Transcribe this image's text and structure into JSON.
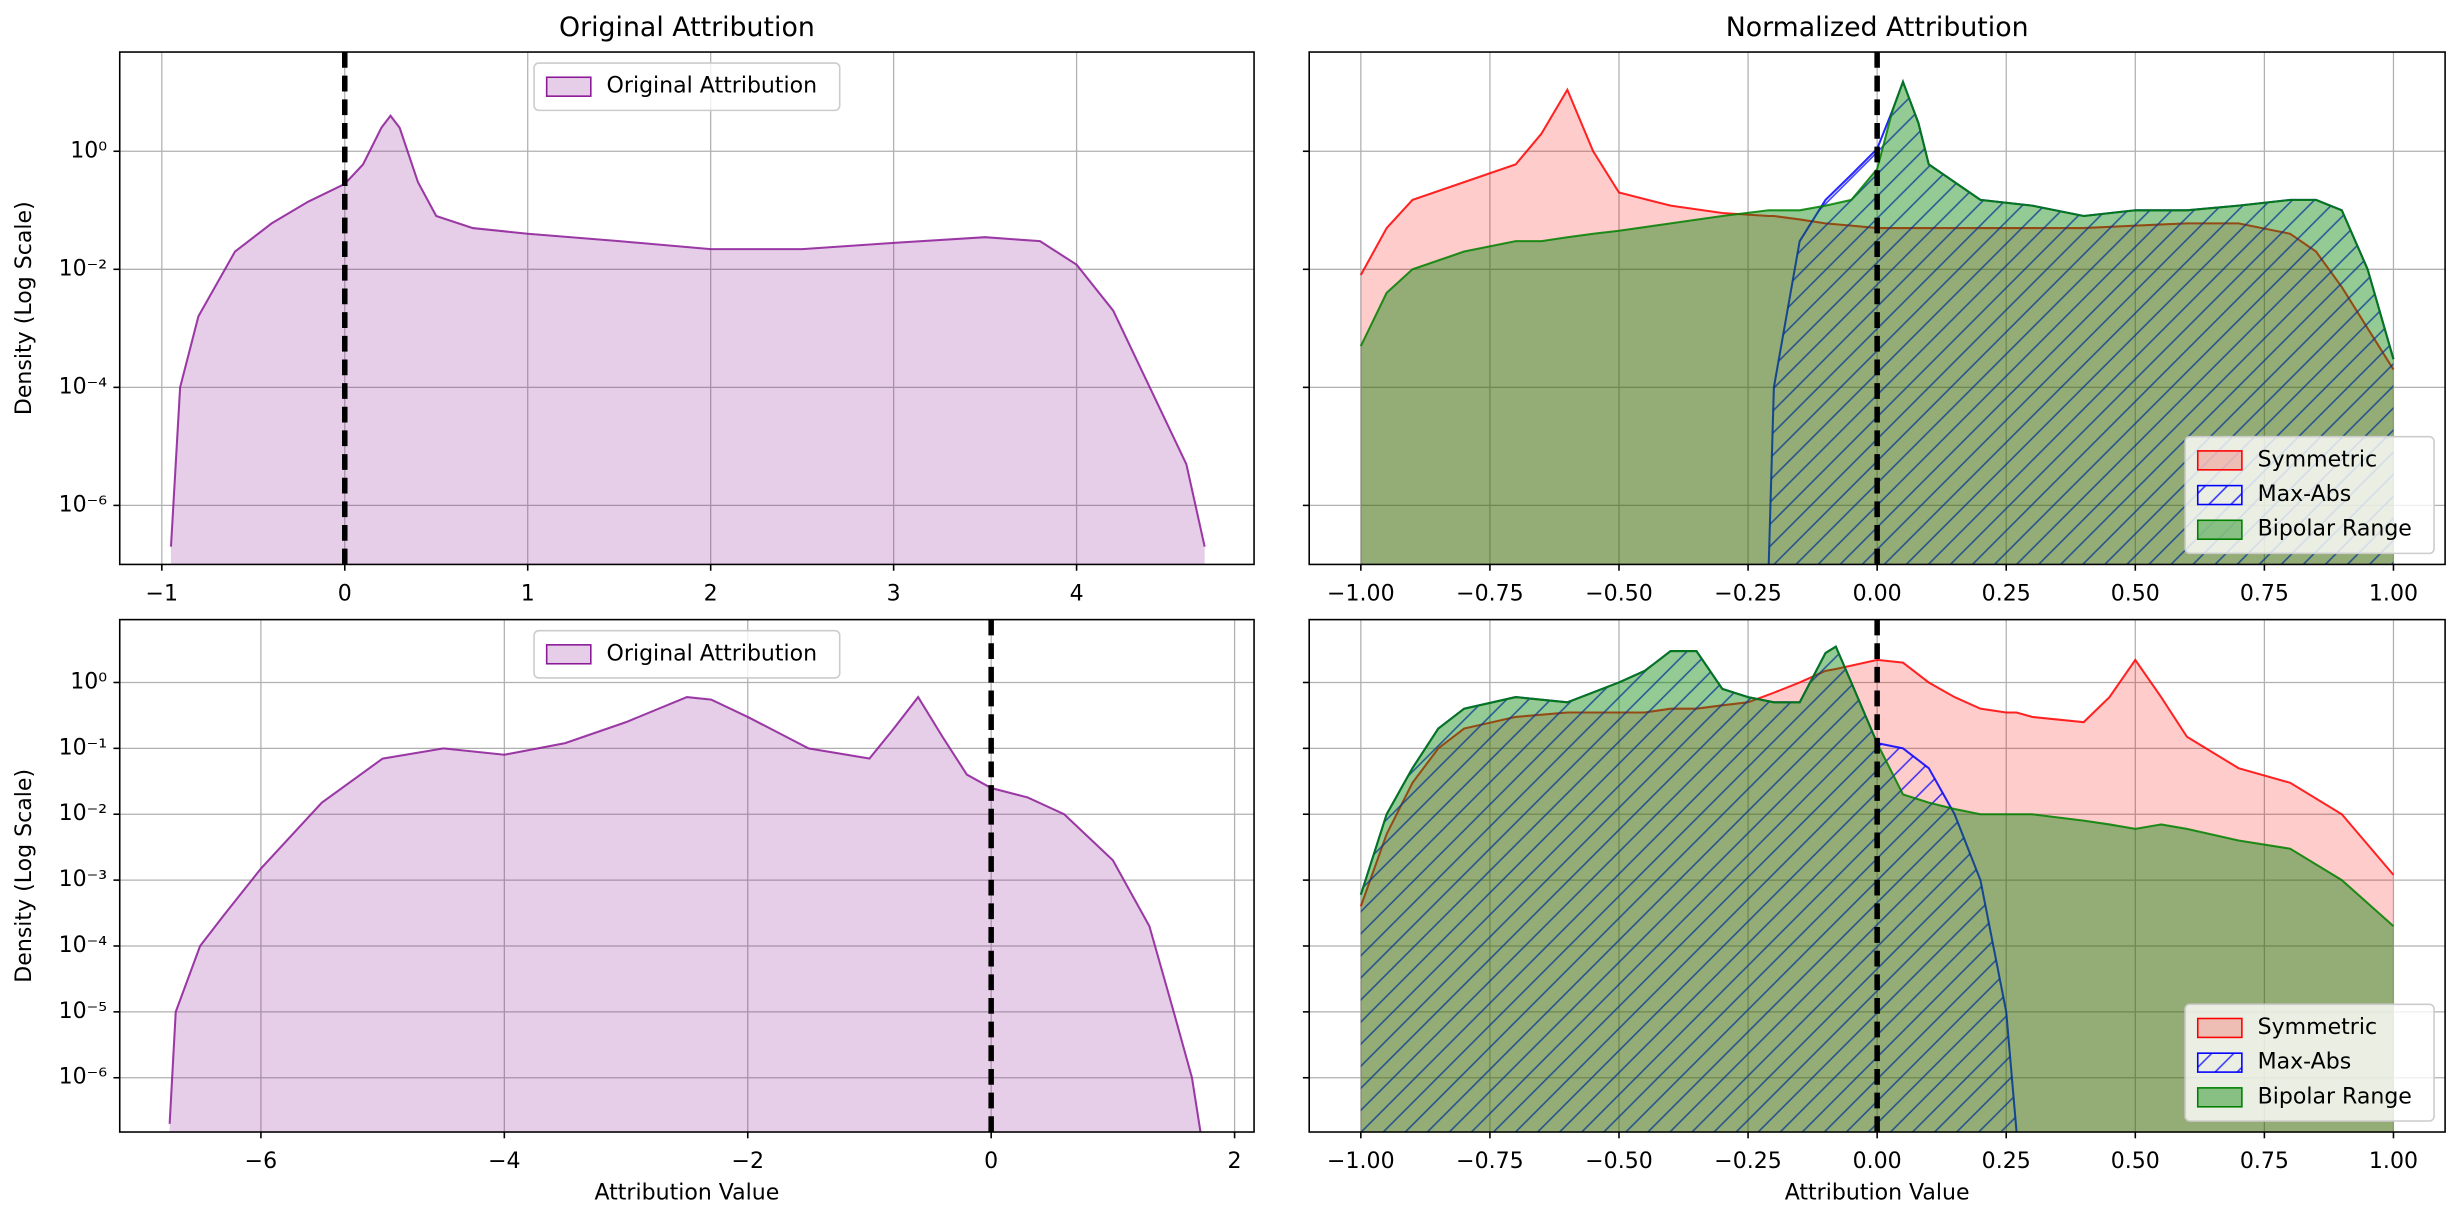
{
  "chart_data": [
    {
      "type": "area",
      "title": "Original Attribution",
      "ylabel": "Density (Log Scale)",
      "log_y": true,
      "grid": true,
      "legend": "upper center",
      "vline": 0,
      "xlim": [
        -1.23,
        4.97
      ],
      "xticks": [
        {
          "value": -1,
          "label": "−1"
        },
        0,
        1,
        2,
        3,
        4
      ],
      "ylim": [
        1e-07,
        48
      ],
      "yticks": [
        {
          "value": 1e-06,
          "label": "10⁻⁶"
        },
        {
          "value": 0.0001,
          "label": "10⁻⁴"
        },
        {
          "value": 0.01,
          "label": "10⁻²"
        },
        {
          "value": 1,
          "label": "10⁰"
        }
      ],
      "x": [
        -0.95,
        -0.9,
        -0.8,
        -0.6,
        -0.4,
        -0.2,
        0,
        0.1,
        0.2,
        0.25,
        0.3,
        0.4,
        0.5,
        0.7,
        1,
        1.5,
        2,
        2.5,
        3,
        3.5,
        3.8,
        4,
        4.2,
        4.4,
        4.6,
        4.7
      ],
      "series": [
        {
          "name": "Original Attribution",
          "color": "#8b1a96",
          "fill_alpha": 0.22,
          "values": [
            2e-07,
            0.0001,
            0.0016,
            0.02,
            0.06,
            0.14,
            0.28,
            0.6,
            2.5,
            4,
            2.5,
            0.3,
            0.08,
            0.05,
            0.04,
            0.03,
            0.022,
            0.022,
            0.028,
            0.035,
            0.03,
            0.012,
            0.002,
            0.0001,
            5e-06,
            2e-07
          ]
        }
      ]
    },
    {
      "type": "area",
      "title": "Normalized Attribution",
      "log_y": true,
      "sharey": true,
      "grid": true,
      "legend": "lower right",
      "vline": 0,
      "xlim": [
        -1.1,
        1.1
      ],
      "xticks": [
        {
          "value": -1,
          "label": "−1.00"
        },
        {
          "value": -0.75,
          "label": "−0.75"
        },
        {
          "value": -0.5,
          "label": "−0.50"
        },
        {
          "value": -0.25,
          "label": "−0.25"
        },
        {
          "value": 0,
          "label": "0.00"
        },
        {
          "value": 0.25,
          "label": "0.25"
        },
        {
          "value": 0.5,
          "label": "0.50"
        },
        {
          "value": 0.75,
          "label": "0.75"
        },
        {
          "value": 1,
          "label": "1.00"
        }
      ],
      "ylim": [
        1e-07,
        48
      ],
      "yticks": [
        1e-06,
        0.0001,
        0.01,
        1
      ],
      "x": [
        -1,
        -0.95,
        -0.9,
        -0.8,
        -0.7,
        -0.65,
        -0.6,
        -0.55,
        -0.5,
        -0.4,
        -0.3,
        -0.21,
        -0.2,
        -0.15,
        -0.1,
        -0.05,
        0,
        0.03,
        0.05,
        0.08,
        0.1,
        0.2,
        0.3,
        0.4,
        0.5,
        0.6,
        0.7,
        0.8,
        0.85,
        0.9,
        0.95,
        1
      ],
      "series": [
        {
          "name": "Symmetric",
          "color": "#ff0000",
          "fill_alpha": 0.2,
          "values": [
            0.008,
            0.05,
            0.15,
            0.3,
            0.6,
            2,
            11,
            1,
            0.2,
            0.12,
            0.09,
            0.08,
            0.08,
            0.07,
            0.06,
            0.055,
            0.05,
            0.05,
            0.05,
            0.05,
            0.05,
            0.05,
            0.05,
            0.05,
            0.055,
            0.06,
            0.06,
            0.04,
            0.02,
            0.005,
            0.001,
            0.0002
          ]
        },
        {
          "name": "Max-Abs",
          "color": "#0000ff",
          "hatch": "//",
          "values": [
            null,
            null,
            null,
            null,
            null,
            null,
            null,
            null,
            null,
            null,
            null,
            1e-07,
            0.0001,
            0.03,
            0.15,
            0.4,
            1.1,
            5,
            15,
            3,
            0.6,
            0.15,
            0.12,
            0.08,
            0.1,
            0.1,
            0.12,
            0.15,
            0.15,
            0.1,
            0.01,
            0.0003
          ]
        },
        {
          "name": "Bipolar Range",
          "color": "#008000",
          "fill_alpha": 0.42,
          "values": [
            0.0005,
            0.004,
            0.01,
            0.02,
            0.03,
            0.03,
            0.035,
            0.04,
            0.045,
            0.06,
            0.08,
            0.1,
            0.1,
            0.1,
            0.12,
            0.15,
            0.5,
            5,
            15,
            3,
            0.6,
            0.15,
            0.12,
            0.08,
            0.1,
            0.1,
            0.12,
            0.15,
            0.15,
            0.1,
            0.01,
            0.0003
          ]
        }
      ]
    },
    {
      "type": "area",
      "xlabel": "Attribution Value",
      "ylabel": "Density (Log Scale)",
      "log_y": true,
      "grid": true,
      "legend": "upper center",
      "vline": 0,
      "xlim": [
        -7.16,
        2.16
      ],
      "xticks": [
        {
          "value": -6,
          "label": "−6"
        },
        {
          "value": -4,
          "label": "−4"
        },
        {
          "value": -2,
          "label": "−2"
        },
        0,
        2
      ],
      "ylim": [
        1.5e-07,
        9
      ],
      "yticks": [
        {
          "value": 1e-06,
          "label": "10⁻⁶"
        },
        {
          "value": 1e-05,
          "label": "10⁻⁵"
        },
        {
          "value": 0.0001,
          "label": "10⁻⁴"
        },
        {
          "value": 0.001,
          "label": "10⁻³"
        },
        {
          "value": 0.01,
          "label": "10⁻²"
        },
        {
          "value": 0.1,
          "label": "10⁻¹"
        },
        {
          "value": 1,
          "label": "10⁰"
        }
      ],
      "x": [
        -6.75,
        -6.7,
        -6.5,
        -6.3,
        -6,
        -5.5,
        -5,
        -4.5,
        -4,
        -3.5,
        -3,
        -2.5,
        -2.3,
        -2,
        -1.5,
        -1,
        -0.8,
        -0.6,
        -0.4,
        -0.2,
        0,
        0.3,
        0.6,
        1,
        1.3,
        1.5,
        1.65,
        1.72
      ],
      "series": [
        {
          "name": "Original Attribution",
          "color": "#8b1a96",
          "fill_alpha": 0.22,
          "values": [
            2e-07,
            1e-05,
            0.0001,
            0.0003,
            0.0015,
            0.015,
            0.07,
            0.1,
            0.08,
            0.12,
            0.25,
            0.6,
            0.55,
            0.3,
            0.1,
            0.07,
            0.2,
            0.6,
            0.15,
            0.04,
            0.025,
            0.018,
            0.01,
            0.002,
            0.0002,
            1e-05,
            1e-06,
            1.5e-07
          ]
        }
      ]
    },
    {
      "type": "area",
      "xlabel": "Attribution Value",
      "log_y": true,
      "sharey": true,
      "grid": true,
      "legend": "lower right",
      "vline": 0,
      "xlim": [
        -1.1,
        1.1
      ],
      "xticks": [
        {
          "value": -1,
          "label": "−1.00"
        },
        {
          "value": -0.75,
          "label": "−0.75"
        },
        {
          "value": -0.5,
          "label": "−0.50"
        },
        {
          "value": -0.25,
          "label": "−0.25"
        },
        {
          "value": 0,
          "label": "0.00"
        },
        {
          "value": 0.25,
          "label": "0.25"
        },
        {
          "value": 0.5,
          "label": "0.50"
        },
        {
          "value": 0.75,
          "label": "0.75"
        },
        {
          "value": 1,
          "label": "1.00"
        }
      ],
      "ylim": [
        1.5e-07,
        9
      ],
      "yticks": [
        1e-06,
        1e-05,
        0.0001,
        0.001,
        0.01,
        0.1,
        1
      ],
      "x": [
        -1,
        -0.95,
        -0.9,
        -0.85,
        -0.8,
        -0.7,
        -0.6,
        -0.5,
        -0.45,
        -0.4,
        -0.35,
        -0.3,
        -0.25,
        -0.2,
        -0.15,
        -0.1,
        -0.08,
        -0.05,
        0,
        0.05,
        0.1,
        0.15,
        0.2,
        0.25,
        0.27,
        0.3,
        0.4,
        0.45,
        0.5,
        0.55,
        0.6,
        0.7,
        0.8,
        0.9,
        1
      ],
      "series": [
        {
          "name": "Symmetric",
          "color": "#ff0000",
          "fill_alpha": 0.2,
          "values": [
            0.0004,
            0.005,
            0.03,
            0.1,
            0.2,
            0.3,
            0.35,
            0.35,
            0.35,
            0.4,
            0.4,
            0.45,
            0.5,
            0.7,
            1,
            1.5,
            1.6,
            1.8,
            2.2,
            2,
            1,
            0.6,
            0.4,
            0.35,
            0.35,
            0.3,
            0.25,
            0.6,
            2.2,
            0.6,
            0.15,
            0.05,
            0.03,
            0.01,
            0.0012
          ]
        },
        {
          "name": "Max-Abs",
          "color": "#0000ff",
          "hatch": "//",
          "values": [
            0.0006,
            0.01,
            0.05,
            0.2,
            0.4,
            0.6,
            0.5,
            1,
            1.5,
            3,
            3,
            0.8,
            0.6,
            0.5,
            0.5,
            2.8,
            3.5,
            1,
            0.12,
            0.1,
            0.05,
            0.01,
            0.001,
            1e-05,
            1.5e-07,
            null,
            null,
            null,
            null,
            null,
            null,
            null,
            null,
            null,
            null
          ]
        },
        {
          "name": "Bipolar Range",
          "color": "#008000",
          "fill_alpha": 0.42,
          "values": [
            0.0006,
            0.01,
            0.05,
            0.2,
            0.4,
            0.6,
            0.5,
            1,
            1.5,
            3,
            3,
            0.8,
            0.6,
            0.5,
            0.5,
            2.8,
            3.5,
            1,
            0.12,
            0.02,
            0.015,
            0.012,
            0.01,
            0.01,
            0.01,
            0.01,
            0.008,
            0.007,
            0.006,
            0.007,
            0.006,
            0.004,
            0.003,
            0.001,
            0.0002
          ]
        }
      ]
    }
  ]
}
